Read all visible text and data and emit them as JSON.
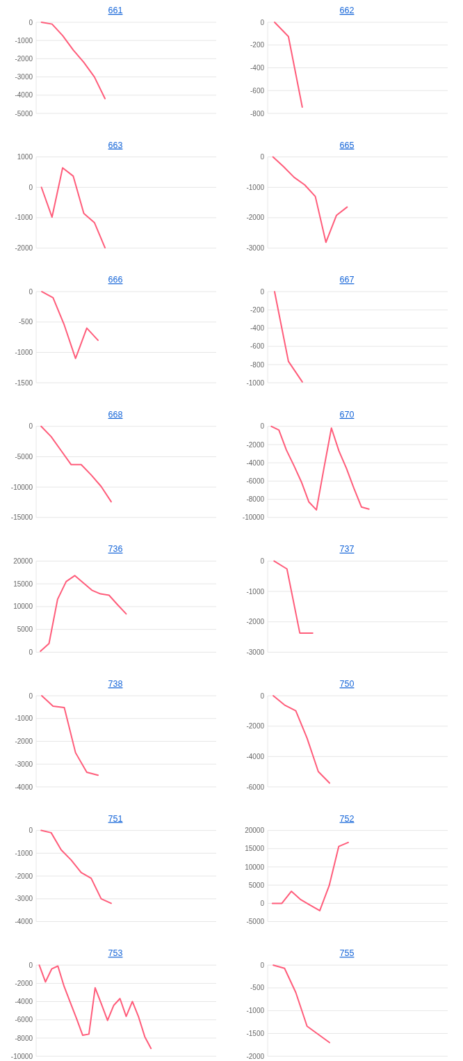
{
  "chart_data": [
    {
      "type": "line",
      "title": "661",
      "categories": [
        null,
        null,
        null,
        null,
        null,
        null,
        null,
        null,
        null,
        null,
        null,
        null,
        null,
        null,
        null,
        null,
        null
      ],
      "series": [
        {
          "color": "#ff5c7a",
          "values": [
            0,
            -100,
            -730,
            -1520,
            -2200,
            -3000,
            -4190,
            null,
            null,
            null,
            null,
            null,
            null,
            null,
            null,
            null,
            null
          ]
        }
      ],
      "ylim": [
        -5000,
        0
      ],
      "yticks": [
        -5000,
        -4000,
        -3000,
        -2000,
        -1000,
        0
      ],
      "grid": "y",
      "tick_labels": "y"
    },
    {
      "type": "line",
      "title": "662",
      "categories": [
        null,
        null,
        null,
        null,
        null,
        null,
        null,
        null,
        null,
        null,
        null,
        null,
        null
      ],
      "series": [
        {
          "color": "#ff5c7a",
          "values": [
            0,
            -125,
            -745,
            null,
            null,
            null,
            null,
            null,
            null,
            null,
            null,
            null,
            null
          ]
        }
      ],
      "ylim": [
        -800,
        0
      ],
      "yticks": [
        -800,
        -600,
        -400,
        -200,
        0
      ],
      "grid": "y",
      "tick_labels": "y"
    },
    {
      "type": "line",
      "title": "663",
      "categories": [
        null,
        null,
        null,
        null,
        null,
        null,
        null,
        null,
        null,
        null,
        null,
        null,
        null,
        null,
        null,
        null,
        null
      ],
      "series": [
        {
          "color": "#ff5c7a",
          "values": [
            0,
            -980,
            640,
            370,
            -860,
            -1160,
            -1990,
            null,
            null,
            null,
            null,
            null,
            null,
            null,
            null,
            null,
            null
          ]
        }
      ],
      "ylim": [
        -2000,
        1000
      ],
      "yticks": [
        -2000,
        -1000,
        0,
        1000
      ],
      "grid": "y",
      "tick_labels": "y"
    },
    {
      "type": "line",
      "title": "665",
      "categories": [
        null,
        null,
        null,
        null,
        null,
        null,
        null,
        null,
        null,
        null,
        null,
        null,
        null,
        null,
        null,
        null,
        null
      ],
      "series": [
        {
          "color": "#ff5c7a",
          "values": [
            0,
            -320,
            -670,
            -920,
            -1300,
            -2810,
            -1920,
            -1650,
            null,
            null,
            null,
            null,
            null,
            null,
            null,
            null,
            null
          ]
        }
      ],
      "ylim": [
        -3000,
        0
      ],
      "yticks": [
        -3000,
        -2000,
        -1000,
        0
      ],
      "grid": "y",
      "tick_labels": "y"
    },
    {
      "type": "line",
      "title": "666",
      "categories": [
        null,
        null,
        null,
        null,
        null,
        null,
        null,
        null,
        null,
        null,
        null,
        null,
        null,
        null,
        null,
        null
      ],
      "series": [
        {
          "color": "#ff5c7a",
          "values": [
            0,
            -100,
            -550,
            -1100,
            -600,
            -800,
            null,
            null,
            null,
            null,
            null,
            null,
            null,
            null,
            null,
            null
          ]
        }
      ],
      "ylim": [
        -1500,
        0
      ],
      "yticks": [
        -1500,
        -1000,
        -500,
        0
      ],
      "grid": "y",
      "tick_labels": "y"
    },
    {
      "type": "line",
      "title": "667",
      "categories": [
        null,
        null,
        null,
        null,
        null,
        null,
        null,
        null,
        null,
        null,
        null,
        null,
        null
      ],
      "series": [
        {
          "color": "#ff5c7a",
          "values": [
            0,
            -765,
            -990,
            null,
            null,
            null,
            null,
            null,
            null,
            null,
            null,
            null,
            null
          ]
        }
      ],
      "ylim": [
        -1000,
        0
      ],
      "yticks": [
        -1000,
        -800,
        -600,
        -400,
        -200,
        0
      ],
      "grid": "y",
      "tick_labels": "y"
    },
    {
      "type": "line",
      "title": "668",
      "categories": [
        null,
        null,
        null,
        null,
        null,
        null,
        null,
        null,
        null,
        null,
        null,
        null,
        null,
        null,
        null,
        null,
        null,
        null
      ],
      "series": [
        {
          "color": "#ff5c7a",
          "values": [
            0,
            -1700,
            -4000,
            -6300,
            -6300,
            -8000,
            -9900,
            -12400,
            null,
            null,
            null,
            null,
            null,
            null,
            null,
            null,
            null,
            null
          ]
        }
      ],
      "ylim": [
        -15000,
        0
      ],
      "yticks": [
        -15000,
        -10000,
        -5000,
        0
      ],
      "grid": "y",
      "tick_labels": "y"
    },
    {
      "type": "line",
      "title": "670",
      "categories": [
        null,
        null,
        null,
        null,
        null,
        null,
        null,
        null,
        null,
        null,
        null,
        null,
        null,
        null,
        null,
        null,
        null,
        null,
        null,
        null,
        null,
        null,
        null,
        null
      ],
      "series": [
        {
          "color": "#ff5c7a",
          "values": [
            0,
            -410,
            -2600,
            -4300,
            -6100,
            -8300,
            -9170,
            -4600,
            -190,
            -2700,
            -4600,
            -6800,
            -8850,
            -9080,
            null,
            null,
            null,
            null,
            null,
            null,
            null,
            null,
            null,
            null
          ]
        }
      ],
      "ylim": [
        -10000,
        0
      ],
      "yticks": [
        -10000,
        -8000,
        -6000,
        -4000,
        -2000,
        0
      ],
      "grid": "y",
      "tick_labels": "y"
    },
    {
      "type": "line",
      "title": "736",
      "categories": [
        null,
        null,
        null,
        null,
        null,
        null,
        null,
        null,
        null,
        null,
        null,
        null,
        null,
        null,
        null,
        null,
        null,
        null,
        null,
        null,
        null
      ],
      "series": [
        {
          "color": "#ff5c7a",
          "values": [
            200,
            1900,
            11600,
            15500,
            16800,
            15200,
            13600,
            12800,
            12500,
            10400,
            8400,
            null,
            null,
            null,
            null,
            null,
            null,
            null,
            null,
            null,
            null
          ]
        }
      ],
      "ylim": [
        0,
        20000
      ],
      "yticks": [
        0,
        5000,
        10000,
        15000,
        20000
      ],
      "grid": "y",
      "tick_labels": "y"
    },
    {
      "type": "line",
      "title": "737",
      "categories": [
        null,
        null,
        null,
        null,
        null,
        null,
        null,
        null,
        null,
        null,
        null,
        null,
        null,
        null
      ],
      "series": [
        {
          "color": "#ff5c7a",
          "values": [
            0,
            -260,
            -2370,
            -2370,
            null,
            null,
            null,
            null,
            null,
            null,
            null,
            null,
            null,
            null
          ]
        }
      ],
      "ylim": [
        -3000,
        0
      ],
      "yticks": [
        -3000,
        -2000,
        -1000,
        0
      ],
      "grid": "y",
      "tick_labels": "y"
    },
    {
      "type": "line",
      "title": "738",
      "categories": [
        null,
        null,
        null,
        null,
        null,
        null,
        null,
        null,
        null,
        null,
        null,
        null,
        null,
        null,
        null,
        null
      ],
      "series": [
        {
          "color": "#ff5c7a",
          "values": [
            0,
            -460,
            -520,
            -2500,
            -3360,
            -3490,
            null,
            null,
            null,
            null,
            null,
            null,
            null,
            null,
            null,
            null
          ]
        }
      ],
      "ylim": [
        -4000,
        0
      ],
      "yticks": [
        -4000,
        -3000,
        -2000,
        -1000,
        0
      ],
      "grid": "y",
      "tick_labels": "y"
    },
    {
      "type": "line",
      "title": "750",
      "categories": [
        null,
        null,
        null,
        null,
        null,
        null,
        null,
        null,
        null,
        null,
        null,
        null,
        null,
        null,
        null,
        null
      ],
      "series": [
        {
          "color": "#ff5c7a",
          "values": [
            0,
            -610,
            -990,
            -2790,
            -4990,
            -5750,
            null,
            null,
            null,
            null,
            null,
            null,
            null,
            null,
            null,
            null
          ]
        }
      ],
      "ylim": [
        -6000,
        0
      ],
      "yticks": [
        -6000,
        -4000,
        -2000,
        0
      ],
      "grid": "y",
      "tick_labels": "y"
    },
    {
      "type": "line",
      "title": "751",
      "categories": [
        null,
        null,
        null,
        null,
        null,
        null,
        null,
        null,
        null,
        null,
        null,
        null,
        null,
        null,
        null,
        null,
        null,
        null
      ],
      "series": [
        {
          "color": "#ff5c7a",
          "values": [
            0,
            -100,
            -850,
            -1300,
            -1850,
            -2100,
            -3000,
            -3200,
            null,
            null,
            null,
            null,
            null,
            null,
            null,
            null,
            null,
            null
          ]
        }
      ],
      "ylim": [
        -4000,
        0
      ],
      "yticks": [
        -4000,
        -3000,
        -2000,
        -1000,
        0
      ],
      "grid": "y",
      "tick_labels": "y"
    },
    {
      "type": "line",
      "title": "752",
      "categories": [
        null,
        null,
        null,
        null,
        null,
        null,
        null,
        null,
        null,
        null,
        null,
        null,
        null,
        null,
        null,
        null,
        null,
        null,
        null
      ],
      "series": [
        {
          "color": "#ff5c7a",
          "values": [
            0,
            0,
            3300,
            1000,
            -500,
            -2000,
            4900,
            15600,
            16700,
            null,
            null,
            null,
            null,
            null,
            null,
            null,
            null,
            null,
            null
          ]
        }
      ],
      "ylim": [
        -5000,
        20000
      ],
      "yticks": [
        -5000,
        0,
        5000,
        10000,
        15000,
        20000
      ],
      "grid": "y",
      "tick_labels": "y"
    },
    {
      "type": "line",
      "title": "753",
      "categories": [
        null,
        null,
        null,
        null,
        null,
        null,
        null,
        null,
        null,
        null,
        null,
        null,
        null,
        null,
        null,
        null,
        null,
        null,
        null,
        null,
        null,
        null,
        null,
        null,
        null,
        null,
        null,
        null,
        null
      ],
      "series": [
        {
          "color": "#ff5c7a",
          "values": [
            0,
            -1850,
            -420,
            -100,
            -2330,
            -4090,
            -5850,
            -7700,
            -7570,
            -2490,
            -4250,
            -6070,
            -4410,
            -3670,
            -5620,
            -3990,
            -5690,
            -7860,
            -9140,
            null,
            null,
            null,
            null,
            null,
            null,
            null,
            null,
            null,
            null
          ]
        }
      ],
      "ylim": [
        -10000,
        0
      ],
      "yticks": [
        -10000,
        -8000,
        -6000,
        -4000,
        -2000,
        0
      ],
      "grid": "y",
      "tick_labels": "y"
    },
    {
      "type": "line",
      "title": "755",
      "categories": [
        null,
        null,
        null,
        null,
        null,
        null,
        null,
        null,
        null,
        null,
        null,
        null,
        null,
        null,
        null,
        null
      ],
      "series": [
        {
          "color": "#ff5c7a",
          "values": [
            0,
            -70,
            -600,
            -1340,
            -1520,
            -1700,
            null,
            null,
            null,
            null,
            null,
            null,
            null,
            null,
            null,
            null
          ]
        }
      ],
      "ylim": [
        -2000,
        0
      ],
      "yticks": [
        -2000,
        -1500,
        -1000,
        -500,
        0
      ],
      "grid": "y",
      "tick_labels": "y"
    }
  ]
}
